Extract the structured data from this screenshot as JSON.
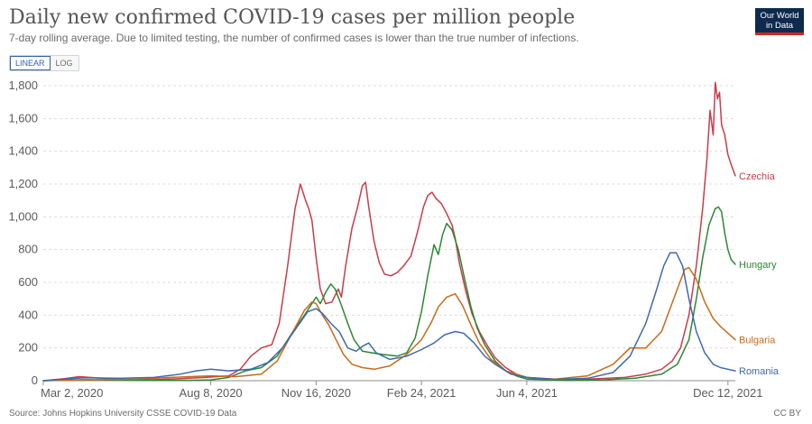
{
  "header": {
    "title": "Daily new confirmed COVID-19 cases per million people",
    "subtitle": "7-day rolling average. Due to limited testing, the number of confirmed cases is lower than the true number of infections."
  },
  "logo": {
    "line1": "Our World",
    "line2": "in Data"
  },
  "scale_toggle": {
    "options": [
      "LINEAR",
      "LOG"
    ],
    "selected": "LINEAR"
  },
  "footer": {
    "source": "Source: Johns Hopkins University CSSE COVID-19 Data",
    "license": "CC BY"
  },
  "colors": {
    "Czechia": "#c93c4b",
    "Hungary": "#2d8733",
    "Bulgaria": "#c96a1a",
    "Romania": "#4169a9"
  },
  "chart_data": {
    "type": "line",
    "title": "Daily new confirmed COVID-19 cases per million people",
    "subtitle": "7-day rolling average. Due to limited testing, the number of confirmed cases is lower than the true number of infections.",
    "x_range": [
      "2020-03-02",
      "2021-12-19"
    ],
    "ylim": [
      0,
      1800
    ],
    "y_ticks": [
      0,
      200,
      400,
      600,
      800,
      1000,
      1200,
      1400,
      1600,
      1800
    ],
    "x_ticks": [
      {
        "date": "2020-03-02",
        "label": "Mar 2, 2020"
      },
      {
        "date": "2020-08-08",
        "label": "Aug 8, 2020"
      },
      {
        "date": "2020-11-16",
        "label": "Nov 16, 2020"
      },
      {
        "date": "2021-02-24",
        "label": "Feb 24, 2021"
      },
      {
        "date": "2021-06-04",
        "label": "Jun 4, 2021"
      },
      {
        "date": "2021-12-12",
        "label": "Dec 12, 2021"
      }
    ],
    "grid": "horizontal-dashed",
    "legend": "line-end labels",
    "series": [
      {
        "name": "Czechia",
        "points": [
          [
            "2020-03-02",
            0
          ],
          [
            "2020-03-22",
            12
          ],
          [
            "2020-04-05",
            25
          ],
          [
            "2020-04-20",
            18
          ],
          [
            "2020-05-15",
            6
          ],
          [
            "2020-06-15",
            6
          ],
          [
            "2020-07-10",
            12
          ],
          [
            "2020-08-08",
            22
          ],
          [
            "2020-08-25",
            30
          ],
          [
            "2020-09-05",
            70
          ],
          [
            "2020-09-15",
            150
          ],
          [
            "2020-09-25",
            200
          ],
          [
            "2020-10-05",
            220
          ],
          [
            "2020-10-12",
            350
          ],
          [
            "2020-10-20",
            700
          ],
          [
            "2020-10-27",
            1050
          ],
          [
            "2020-11-01",
            1200
          ],
          [
            "2020-11-06",
            1100
          ],
          [
            "2020-11-09",
            1050
          ],
          [
            "2020-11-12",
            980
          ],
          [
            "2020-11-16",
            750
          ],
          [
            "2020-11-20",
            560
          ],
          [
            "2020-11-25",
            470
          ],
          [
            "2020-12-01",
            480
          ],
          [
            "2020-12-07",
            560
          ],
          [
            "2020-12-10",
            510
          ],
          [
            "2020-12-14",
            700
          ],
          [
            "2020-12-20",
            930
          ],
          [
            "2020-12-25",
            1050
          ],
          [
            "2020-12-30",
            1190
          ],
          [
            "2021-01-02",
            1210
          ],
          [
            "2021-01-05",
            1060
          ],
          [
            "2021-01-10",
            850
          ],
          [
            "2021-01-15",
            720
          ],
          [
            "2021-01-20",
            650
          ],
          [
            "2021-01-26",
            640
          ],
          [
            "2021-02-01",
            660
          ],
          [
            "2021-02-07",
            700
          ],
          [
            "2021-02-14",
            760
          ],
          [
            "2021-02-20",
            900
          ],
          [
            "2021-02-26",
            1060
          ],
          [
            "2021-03-02",
            1130
          ],
          [
            "2021-03-06",
            1150
          ],
          [
            "2021-03-10",
            1110
          ],
          [
            "2021-03-15",
            1080
          ],
          [
            "2021-03-20",
            1020
          ],
          [
            "2021-03-25",
            950
          ],
          [
            "2021-03-28",
            870
          ],
          [
            "2021-04-01",
            720
          ],
          [
            "2021-04-07",
            550
          ],
          [
            "2021-04-13",
            410
          ],
          [
            "2021-04-20",
            300
          ],
          [
            "2021-04-27",
            220
          ],
          [
            "2021-05-05",
            140
          ],
          [
            "2021-05-15",
            80
          ],
          [
            "2021-05-25",
            40
          ],
          [
            "2021-06-04",
            20
          ],
          [
            "2021-06-20",
            8
          ],
          [
            "2021-07-10",
            6
          ],
          [
            "2021-08-01",
            10
          ],
          [
            "2021-08-20",
            15
          ],
          [
            "2021-09-05",
            20
          ],
          [
            "2021-09-25",
            40
          ],
          [
            "2021-10-10",
            70
          ],
          [
            "2021-10-20",
            120
          ],
          [
            "2021-10-28",
            200
          ],
          [
            "2021-11-05",
            400
          ],
          [
            "2021-11-12",
            700
          ],
          [
            "2021-11-18",
            1050
          ],
          [
            "2021-11-22",
            1350
          ],
          [
            "2021-11-25",
            1650
          ],
          [
            "2021-11-28",
            1500
          ],
          [
            "2021-11-30",
            1820
          ],
          [
            "2021-12-02",
            1720
          ],
          [
            "2021-12-04",
            1760
          ],
          [
            "2021-12-06",
            1560
          ],
          [
            "2021-12-09",
            1500
          ],
          [
            "2021-12-12",
            1380
          ],
          [
            "2021-12-15",
            1320
          ],
          [
            "2021-12-19",
            1250
          ]
        ]
      },
      {
        "name": "Hungary",
        "points": [
          [
            "2020-03-02",
            0
          ],
          [
            "2020-04-10",
            6
          ],
          [
            "2020-05-01",
            5
          ],
          [
            "2020-06-15",
            2
          ],
          [
            "2020-07-15",
            2
          ],
          [
            "2020-08-08",
            5
          ],
          [
            "2020-08-25",
            20
          ],
          [
            "2020-09-10",
            60
          ],
          [
            "2020-09-25",
            80
          ],
          [
            "2020-10-10",
            150
          ],
          [
            "2020-10-25",
            300
          ],
          [
            "2020-11-05",
            400
          ],
          [
            "2020-11-12",
            470
          ],
          [
            "2020-11-16",
            510
          ],
          [
            "2020-11-20",
            470
          ],
          [
            "2020-11-26",
            550
          ],
          [
            "2020-11-30",
            590
          ],
          [
            "2020-12-04",
            560
          ],
          [
            "2020-12-10",
            460
          ],
          [
            "2020-12-16",
            350
          ],
          [
            "2020-12-22",
            250
          ],
          [
            "2020-12-30",
            180
          ],
          [
            "2021-01-08",
            170
          ],
          [
            "2021-01-18",
            160
          ],
          [
            "2021-02-01",
            150
          ],
          [
            "2021-02-10",
            170
          ],
          [
            "2021-02-18",
            260
          ],
          [
            "2021-02-24",
            420
          ],
          [
            "2021-03-02",
            640
          ],
          [
            "2021-03-08",
            830
          ],
          [
            "2021-03-12",
            770
          ],
          [
            "2021-03-16",
            890
          ],
          [
            "2021-03-20",
            960
          ],
          [
            "2021-03-25",
            920
          ],
          [
            "2021-03-31",
            800
          ],
          [
            "2021-04-06",
            620
          ],
          [
            "2021-04-12",
            450
          ],
          [
            "2021-04-18",
            320
          ],
          [
            "2021-04-25",
            220
          ],
          [
            "2021-05-05",
            120
          ],
          [
            "2021-05-15",
            60
          ],
          [
            "2021-05-25",
            30
          ],
          [
            "2021-06-04",
            10
          ],
          [
            "2021-07-15",
            2
          ],
          [
            "2021-08-15",
            5
          ],
          [
            "2021-09-15",
            15
          ],
          [
            "2021-10-10",
            40
          ],
          [
            "2021-10-25",
            100
          ],
          [
            "2021-11-05",
            250
          ],
          [
            "2021-11-12",
            500
          ],
          [
            "2021-11-18",
            750
          ],
          [
            "2021-11-24",
            950
          ],
          [
            "2021-11-30",
            1050
          ],
          [
            "2021-12-03",
            1060
          ],
          [
            "2021-12-06",
            1030
          ],
          [
            "2021-12-09",
            900
          ],
          [
            "2021-12-12",
            800
          ],
          [
            "2021-12-15",
            740
          ],
          [
            "2021-12-19",
            710
          ]
        ]
      },
      {
        "name": "Bulgaria",
        "points": [
          [
            "2020-03-02",
            0
          ],
          [
            "2020-04-15",
            5
          ],
          [
            "2020-06-01",
            10
          ],
          [
            "2020-07-01",
            20
          ],
          [
            "2020-08-08",
            30
          ],
          [
            "2020-09-01",
            25
          ],
          [
            "2020-09-25",
            40
          ],
          [
            "2020-10-10",
            120
          ],
          [
            "2020-10-25",
            300
          ],
          [
            "2020-11-05",
            430
          ],
          [
            "2020-11-12",
            480
          ],
          [
            "2020-11-16",
            470
          ],
          [
            "2020-11-22",
            400
          ],
          [
            "2020-11-28",
            340
          ],
          [
            "2020-12-05",
            250
          ],
          [
            "2020-12-12",
            160
          ],
          [
            "2020-12-20",
            100
          ],
          [
            "2020-12-30",
            80
          ],
          [
            "2021-01-10",
            70
          ],
          [
            "2021-01-25",
            90
          ],
          [
            "2021-02-10",
            160
          ],
          [
            "2021-02-24",
            250
          ],
          [
            "2021-03-05",
            350
          ],
          [
            "2021-03-12",
            450
          ],
          [
            "2021-03-20",
            510
          ],
          [
            "2021-03-28",
            530
          ],
          [
            "2021-04-04",
            460
          ],
          [
            "2021-04-12",
            340
          ],
          [
            "2021-04-20",
            230
          ],
          [
            "2021-05-01",
            130
          ],
          [
            "2021-05-15",
            60
          ],
          [
            "2021-06-04",
            20
          ],
          [
            "2021-07-01",
            10
          ],
          [
            "2021-08-01",
            30
          ],
          [
            "2021-08-25",
            100
          ],
          [
            "2021-09-10",
            200
          ],
          [
            "2021-09-25",
            200
          ],
          [
            "2021-10-10",
            300
          ],
          [
            "2021-10-25",
            560
          ],
          [
            "2021-11-01",
            680
          ],
          [
            "2021-11-05",
            690
          ],
          [
            "2021-11-12",
            620
          ],
          [
            "2021-11-20",
            480
          ],
          [
            "2021-11-28",
            380
          ],
          [
            "2021-12-05",
            330
          ],
          [
            "2021-12-12",
            290
          ],
          [
            "2021-12-19",
            250
          ]
        ]
      },
      {
        "name": "Romania",
        "points": [
          [
            "2020-03-02",
            0
          ],
          [
            "2020-04-10",
            18
          ],
          [
            "2020-05-15",
            15
          ],
          [
            "2020-06-15",
            20
          ],
          [
            "2020-07-10",
            40
          ],
          [
            "2020-07-25",
            60
          ],
          [
            "2020-08-08",
            70
          ],
          [
            "2020-08-25",
            60
          ],
          [
            "2020-09-15",
            70
          ],
          [
            "2020-10-01",
            110
          ],
          [
            "2020-10-15",
            200
          ],
          [
            "2020-10-28",
            320
          ],
          [
            "2020-11-08",
            420
          ],
          [
            "2020-11-16",
            440
          ],
          [
            "2020-11-22",
            410
          ],
          [
            "2020-11-30",
            350
          ],
          [
            "2020-12-08",
            300
          ],
          [
            "2020-12-16",
            200
          ],
          [
            "2020-12-24",
            180
          ],
          [
            "2020-12-30",
            210
          ],
          [
            "2021-01-05",
            230
          ],
          [
            "2021-01-12",
            170
          ],
          [
            "2021-01-25",
            130
          ],
          [
            "2021-02-10",
            150
          ],
          [
            "2021-02-24",
            190
          ],
          [
            "2021-03-08",
            230
          ],
          [
            "2021-03-18",
            280
          ],
          [
            "2021-03-28",
            300
          ],
          [
            "2021-04-05",
            290
          ],
          [
            "2021-04-15",
            230
          ],
          [
            "2021-04-25",
            150
          ],
          [
            "2021-05-05",
            100
          ],
          [
            "2021-05-20",
            40
          ],
          [
            "2021-06-04",
            20
          ],
          [
            "2021-07-01",
            8
          ],
          [
            "2021-08-01",
            15
          ],
          [
            "2021-08-25",
            50
          ],
          [
            "2021-09-10",
            150
          ],
          [
            "2021-09-25",
            350
          ],
          [
            "2021-10-05",
            550
          ],
          [
            "2021-10-12",
            700
          ],
          [
            "2021-10-18",
            780
          ],
          [
            "2021-10-24",
            780
          ],
          [
            "2021-10-30",
            700
          ],
          [
            "2021-11-05",
            500
          ],
          [
            "2021-11-12",
            300
          ],
          [
            "2021-11-20",
            170
          ],
          [
            "2021-11-28",
            100
          ],
          [
            "2021-12-05",
            80
          ],
          [
            "2021-12-12",
            70
          ],
          [
            "2021-12-19",
            60
          ]
        ]
      }
    ]
  }
}
